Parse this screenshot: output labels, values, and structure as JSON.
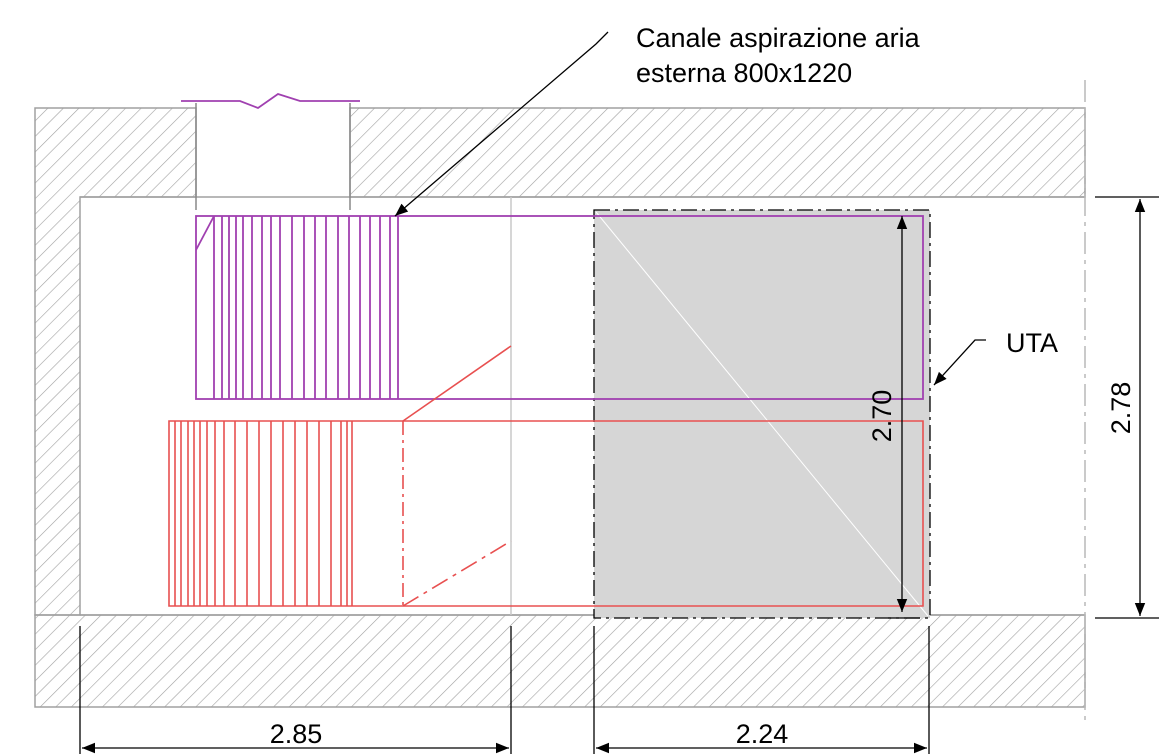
{
  "annotations": {
    "duct_label_line1": "Canale aspirazione aria",
    "duct_label_line2": "esterna 800x1220",
    "unit_label": "UTA"
  },
  "dimensions": {
    "bottom_left": "2.85",
    "bottom_right": "2.24",
    "unit_height": "2.70",
    "room_height": "2.78"
  },
  "colors": {
    "supply_duct": "#a040b0",
    "return_duct": "#e85050",
    "unit_fill": "#d6d6d6",
    "hatch": "#a0a0a0"
  }
}
